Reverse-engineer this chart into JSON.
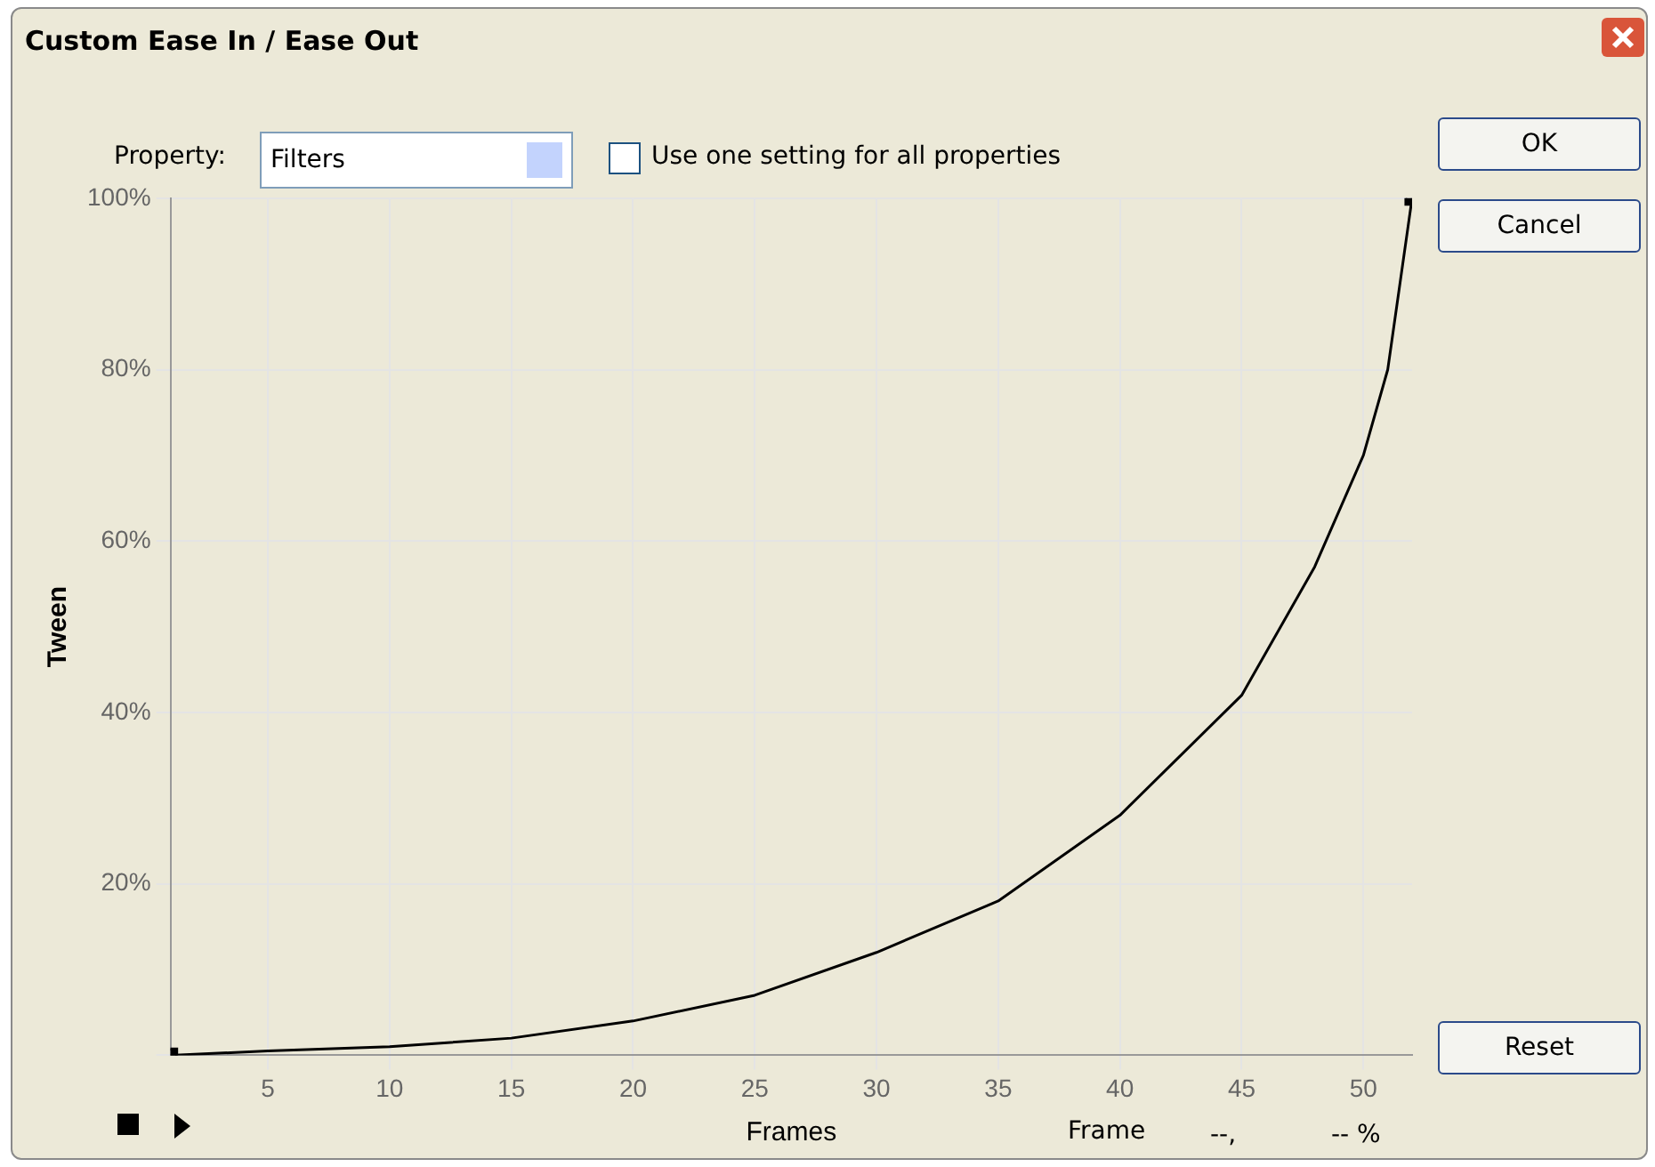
{
  "chart_data": {
    "type": "line",
    "title": "Custom Ease In / Ease Out",
    "xlabel": "Frames",
    "ylabel": "Tween",
    "annotations": [
      "Property:",
      "Filters",
      "Use one setting for all properties",
      "OK",
      "Cancel",
      "Reset",
      "Frame",
      "--,",
      "-- %"
    ],
    "series": [
      {
        "color": "#000000",
        "x": [
          1,
          5,
          10,
          15,
          20,
          25,
          30,
          35,
          40,
          45,
          48,
          50,
          51,
          52
        ],
        "values": [
          0,
          0.5,
          1,
          2,
          4,
          7,
          12,
          18,
          28,
          42,
          57,
          70,
          80,
          100
        ],
        "marker": "none"
      },
      {
        "type": "scatter",
        "color": "#000000",
        "x": [
          1,
          52
        ],
        "values": [
          0,
          100
        ],
        "marker": "square"
      }
    ],
    "xlim": [
      1,
      52
    ],
    "xticks": [
      5,
      10,
      15,
      20,
      25,
      30,
      35,
      40,
      45,
      50
    ],
    "ylim": [
      0,
      100
    ],
    "yticks": [
      {
        "value": 0,
        "label": null
      },
      {
        "value": 20,
        "label": "20%"
      },
      {
        "value": 40,
        "label": "40%"
      },
      {
        "value": 60,
        "label": "60%"
      },
      {
        "value": 80,
        "label": "80%"
      },
      {
        "value": 100,
        "label": "100%"
      }
    ],
    "grid": true,
    "legend": false
  }
}
